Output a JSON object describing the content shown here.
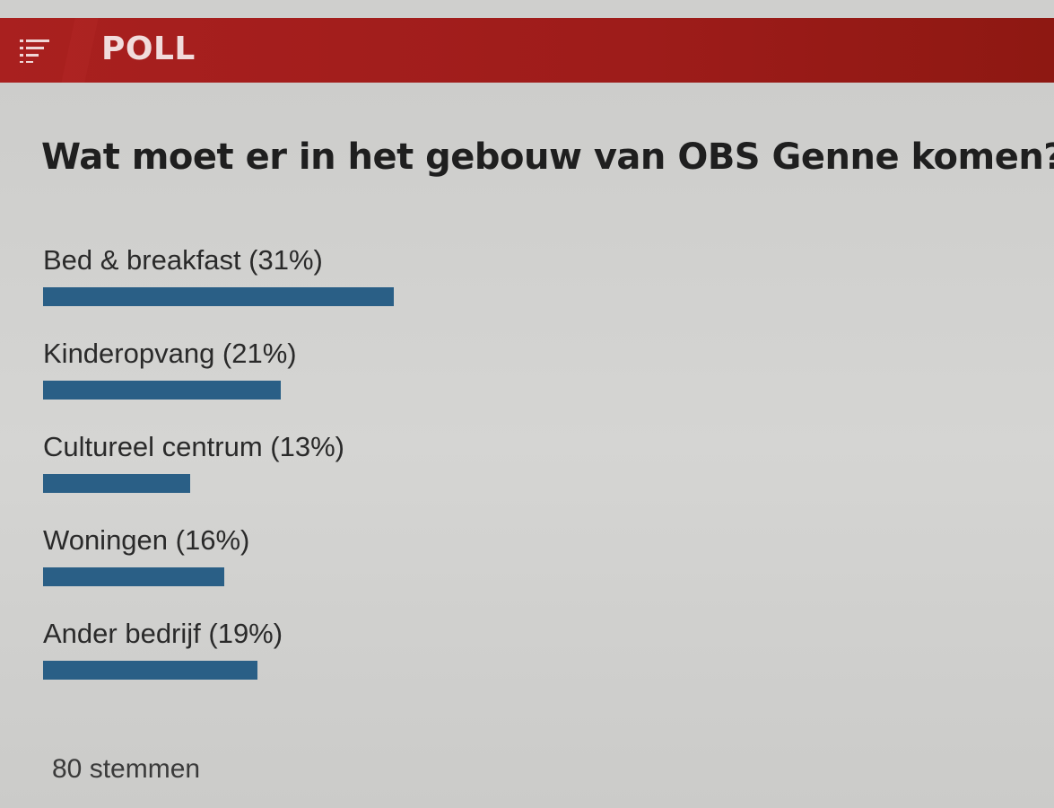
{
  "header": {
    "menu_icon": "list-filter-icon",
    "title": "POLL"
  },
  "poll": {
    "question": "Wat moet er in het gebouw van OBS Genne komen?",
    "bar_color": "#2a5f86",
    "options": [
      {
        "label": "Bed & breakfast (31%)",
        "percent": 31
      },
      {
        "label": "Kinderopvang (21%)",
        "percent": 21
      },
      {
        "label": "Cultureel centrum (13%)",
        "percent": 13
      },
      {
        "label": "Woningen (16%)",
        "percent": 16
      },
      {
        "label": "Ander bedrijf (19%)",
        "percent": 19
      }
    ],
    "votes": "80 stemmen"
  }
}
